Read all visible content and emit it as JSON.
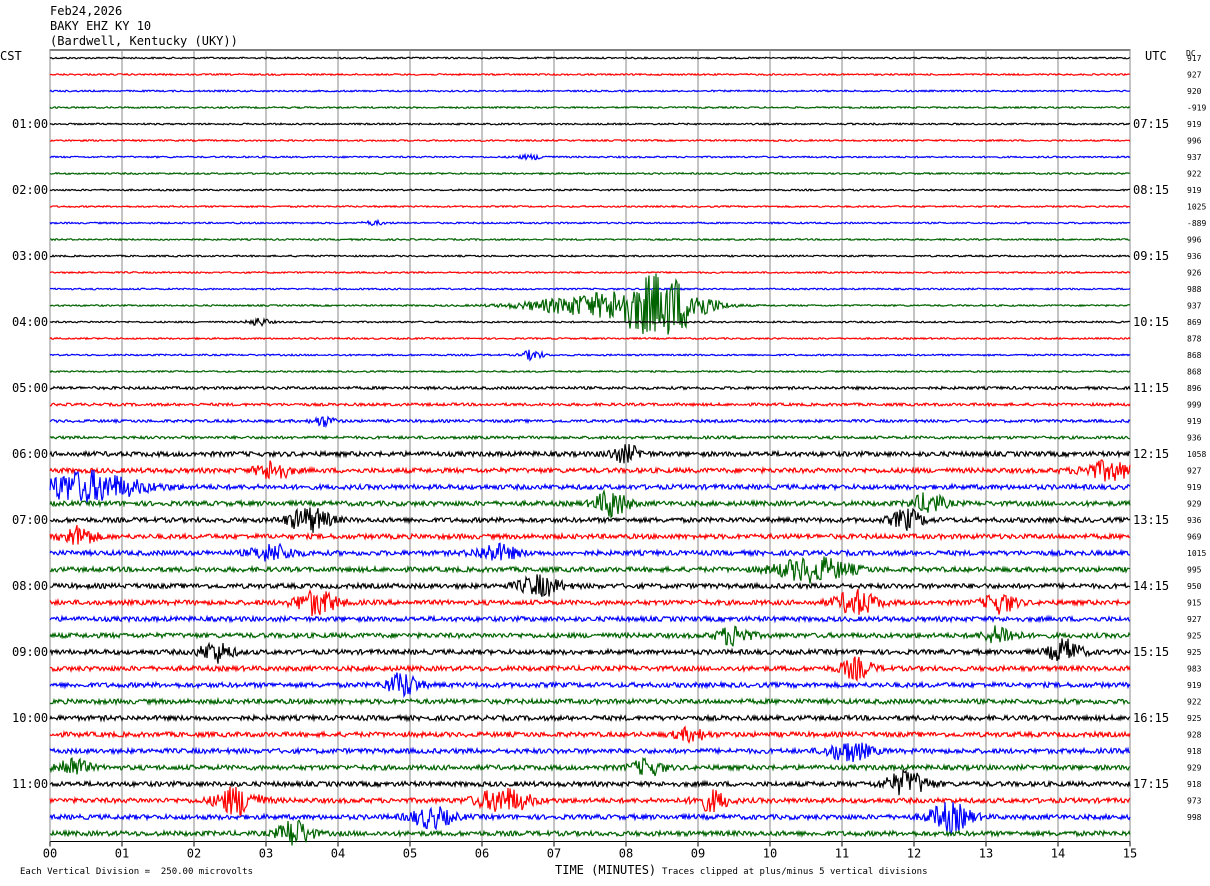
{
  "header": {
    "date": "Feb24,2026",
    "station": "BAKY EHZ KY 10",
    "location": "(Bardwell, Kentucky (UKY))"
  },
  "chart_data": {
    "type": "line",
    "title": "BAKY EHZ KY 10",
    "left_axis_label": "CST",
    "right_axis_label": "UTC",
    "dc_label": "DC",
    "xlabel": "TIME (MINUTES)",
    "xlim": [
      0,
      15
    ],
    "x_ticks": [
      "00",
      "01",
      "02",
      "03",
      "04",
      "05",
      "06",
      "07",
      "08",
      "09",
      "10",
      "11",
      "12",
      "13",
      "14",
      "15"
    ],
    "trace_count": 48,
    "trace_colors": [
      "#000000",
      "#ff0000",
      "#0000ff",
      "#006400"
    ],
    "cst_hour_labels": [
      {
        "trace": 4,
        "label": "01:00"
      },
      {
        "trace": 8,
        "label": "02:00"
      },
      {
        "trace": 12,
        "label": "03:00"
      },
      {
        "trace": 16,
        "label": "04:00"
      },
      {
        "trace": 20,
        "label": "05:00"
      },
      {
        "trace": 24,
        "label": "06:00"
      },
      {
        "trace": 28,
        "label": "07:00"
      },
      {
        "trace": 32,
        "label": "08:00"
      },
      {
        "trace": 36,
        "label": "09:00"
      },
      {
        "trace": 40,
        "label": "10:00"
      },
      {
        "trace": 44,
        "label": "11:00"
      }
    ],
    "utc_hour_labels": [
      {
        "trace": 4,
        "label": "07:15"
      },
      {
        "trace": 8,
        "label": "08:15"
      },
      {
        "trace": 12,
        "label": "09:15"
      },
      {
        "trace": 16,
        "label": "10:15"
      },
      {
        "trace": 20,
        "label": "11:15"
      },
      {
        "trace": 24,
        "label": "12:15"
      },
      {
        "trace": 28,
        "label": "13:15"
      },
      {
        "trace": 32,
        "label": "14:15"
      },
      {
        "trace": 36,
        "label": "15:15"
      },
      {
        "trace": 40,
        "label": "16:15"
      },
      {
        "trace": 44,
        "label": "17:15"
      }
    ],
    "dc_offsets": [
      "917",
      "927",
      "920",
      "-919",
      "919",
      "996",
      "937",
      "922",
      "919",
      "1025",
      "-889",
      "996",
      "936",
      "926",
      "988",
      "937",
      "869",
      "878",
      "868",
      "868",
      "896",
      "999",
      "919",
      "936",
      "1058",
      "927",
      "919",
      "929",
      "936",
      "969",
      "1015",
      "995",
      "950",
      "915",
      "927",
      "925",
      "925",
      "983",
      "919",
      "922",
      "925",
      "928",
      "918",
      "929",
      "918",
      "973",
      "998"
    ],
    "scale_note": "Each Vertical Division =  250.00 microvolts",
    "clip_note": "Traces clipped at plus/minus 5 vertical divisions",
    "grid": true
  }
}
